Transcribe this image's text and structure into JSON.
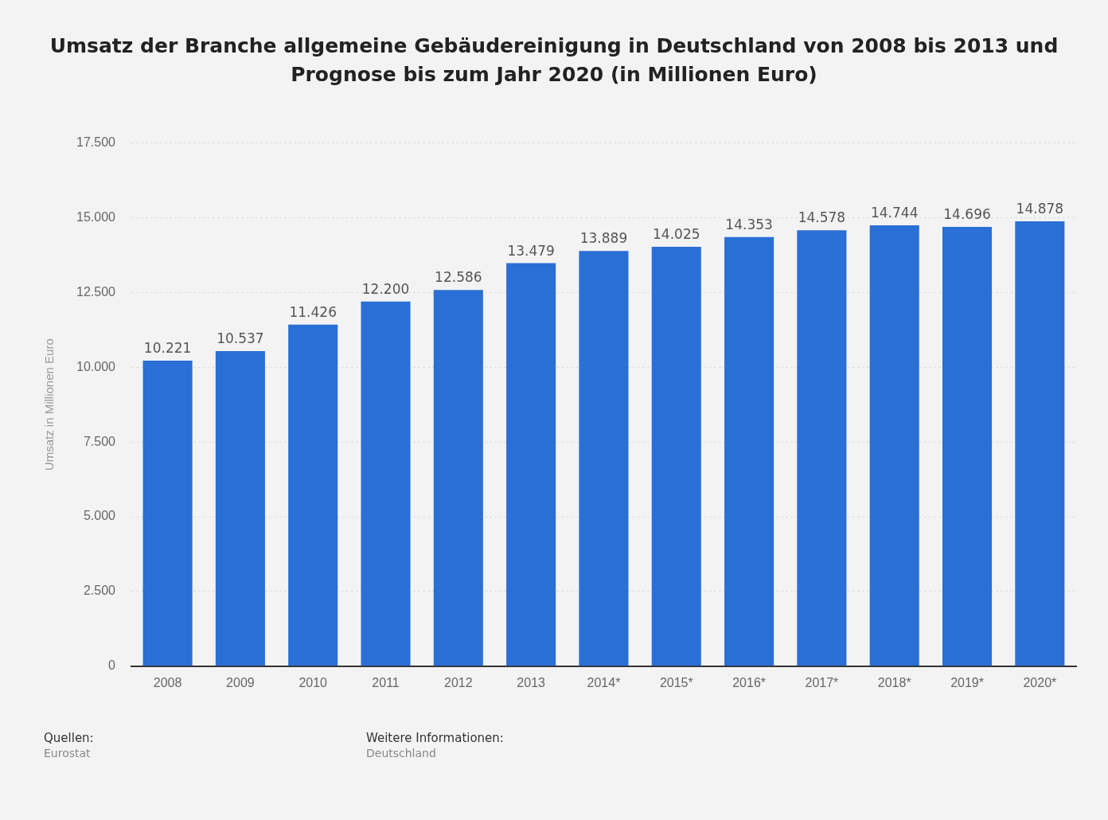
{
  "chart_data": {
    "type": "bar",
    "title": "Umsatz der Branche allgemeine Gebäudereinigung in Deutschland von 2008 bis 2013 und Prognose bis zum Jahr 2020 (in Millionen Euro)",
    "ylabel": "Umsatz in Millionen Euro",
    "categories": [
      "2008",
      "2009",
      "2010",
      "2011",
      "2012",
      "2013",
      "2014*",
      "2015*",
      "2016*",
      "2017*",
      "2018*",
      "2019*",
      "2020*"
    ],
    "values": [
      10221,
      10537,
      11426,
      12200,
      12586,
      13479,
      13889,
      14025,
      14353,
      14578,
      14744,
      14696,
      14878
    ],
    "value_labels": [
      "10.221",
      "10.537",
      "11.426",
      "12.200",
      "12.586",
      "13.479",
      "13.889",
      "14.025",
      "14.353",
      "14.578",
      "14.744",
      "14.696",
      "14.878"
    ],
    "color": "#2a6fd6",
    "ylim": [
      0,
      17500
    ],
    "yticks": [
      {
        "value": 0,
        "label": "0"
      },
      {
        "value": 2500,
        "label": "2.500"
      },
      {
        "value": 5000,
        "label": "5.000"
      },
      {
        "value": 7500,
        "label": "7.500"
      },
      {
        "value": 10000,
        "label": "10.000"
      },
      {
        "value": 12500,
        "label": "12.500"
      },
      {
        "value": 15000,
        "label": "15.000"
      },
      {
        "value": 17500,
        "label": "17.500"
      }
    ],
    "grid": "y",
    "annotations": [
      "Quellen:",
      "Eurostat",
      "Weitere Informationen:",
      "Deutschland"
    ]
  }
}
